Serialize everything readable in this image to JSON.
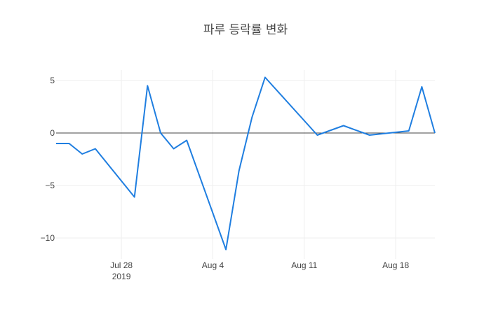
{
  "chart_data": {
    "type": "line",
    "title": "파루 등락률 변화",
    "xlabel": "",
    "ylabel": "",
    "x_range": [
      "2019-07-23",
      "2019-08-21"
    ],
    "ylim": [
      -12,
      6
    ],
    "grid": true,
    "legend": "none",
    "x_ticks": [
      {
        "date": "2019-07-28",
        "label": "Jul 28",
        "sublabel": "2019"
      },
      {
        "date": "2019-08-04",
        "label": "Aug 4",
        "sublabel": ""
      },
      {
        "date": "2019-08-11",
        "label": "Aug 11",
        "sublabel": ""
      },
      {
        "date": "2019-08-18",
        "label": "Aug 18",
        "sublabel": ""
      }
    ],
    "y_ticks": [
      {
        "value": 5,
        "label": "5"
      },
      {
        "value": 0,
        "label": "0"
      },
      {
        "value": -5,
        "label": "−5"
      },
      {
        "value": -10,
        "label": "−10"
      }
    ],
    "series": [
      {
        "name": "",
        "color": "#1f7ee0",
        "x": [
          "2019-07-23",
          "2019-07-24",
          "2019-07-25",
          "2019-07-26",
          "2019-07-29",
          "2019-07-30",
          "2019-07-31",
          "2019-08-01",
          "2019-08-02",
          "2019-08-05",
          "2019-08-06",
          "2019-08-07",
          "2019-08-08",
          "2019-08-12",
          "2019-08-14",
          "2019-08-16",
          "2019-08-19",
          "2019-08-20",
          "2019-08-21"
        ],
        "y": [
          -1.0,
          -1.0,
          -2.0,
          -1.5,
          -6.1,
          4.5,
          0.0,
          -1.5,
          -0.7,
          -11.1,
          -3.6,
          1.5,
          5.3,
          -0.2,
          0.7,
          -0.2,
          0.2,
          4.4,
          0.0
        ]
      }
    ]
  }
}
